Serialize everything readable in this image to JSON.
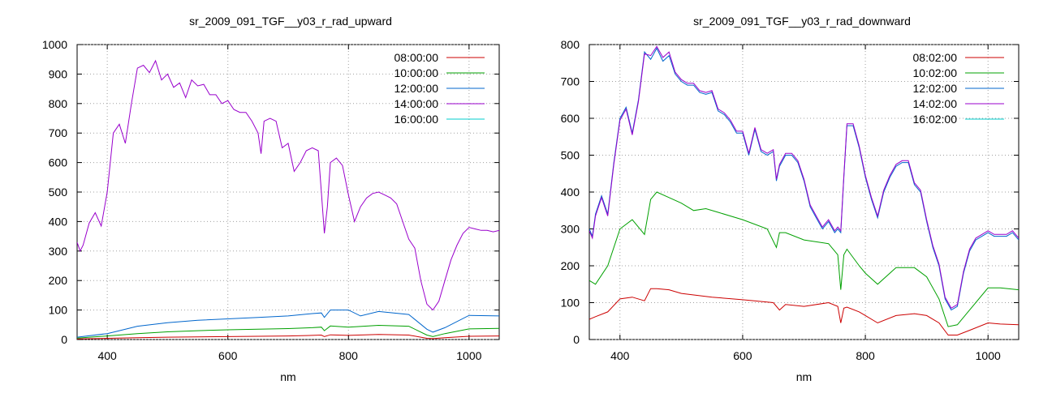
{
  "chart_data": [
    {
      "type": "line",
      "title": "sr_2009_091_TGF__y03_r_rad_upward",
      "xlabel": "nm",
      "ylabel": "",
      "xlim": [
        350,
        1050
      ],
      "ylim": [
        0,
        1000
      ],
      "xticks": [
        400,
        600,
        800,
        1000
      ],
      "yticks": [
        0,
        100,
        200,
        300,
        400,
        500,
        600,
        700,
        800,
        900,
        1000
      ],
      "grid": true,
      "legend_position": "top-right",
      "series": [
        {
          "name": "08:00:00",
          "color": "#cc0000",
          "x": [
            350,
            400,
            450,
            500,
            550,
            600,
            650,
            700,
            740,
            755,
            760,
            770,
            800,
            850,
            900,
            930,
            940,
            960,
            1000,
            1050
          ],
          "y": [
            2,
            4,
            6,
            8,
            9,
            10,
            11,
            12,
            14,
            15,
            10,
            16,
            14,
            17,
            15,
            4,
            3,
            6,
            11,
            12
          ]
        },
        {
          "name": "10:00:00",
          "color": "#00a000",
          "x": [
            350,
            400,
            450,
            500,
            550,
            600,
            650,
            700,
            740,
            755,
            760,
            770,
            800,
            850,
            900,
            930,
            940,
            960,
            1000,
            1050
          ],
          "y": [
            5,
            12,
            20,
            26,
            30,
            33,
            35,
            37,
            40,
            42,
            30,
            46,
            42,
            48,
            45,
            15,
            10,
            20,
            36,
            38
          ]
        },
        {
          "name": "12:00:00",
          "color": "#0066cc",
          "x": [
            350,
            400,
            420,
            450,
            500,
            550,
            600,
            650,
            700,
            740,
            755,
            760,
            770,
            800,
            820,
            850,
            900,
            930,
            940,
            960,
            1000,
            1050
          ],
          "y": [
            8,
            20,
            30,
            45,
            57,
            65,
            70,
            75,
            80,
            88,
            90,
            75,
            100,
            100,
            80,
            95,
            85,
            35,
            25,
            40,
            82,
            80
          ]
        },
        {
          "name": "14:00:00",
          "color": "#9900cc",
          "x": [
            350,
            355,
            360,
            370,
            380,
            390,
            400,
            410,
            420,
            430,
            440,
            450,
            460,
            470,
            480,
            490,
            500,
            510,
            520,
            530,
            540,
            550,
            560,
            570,
            580,
            590,
            600,
            610,
            620,
            630,
            640,
            650,
            655,
            660,
            670,
            680,
            690,
            700,
            710,
            720,
            730,
            740,
            750,
            755,
            760,
            765,
            770,
            780,
            790,
            800,
            810,
            820,
            830,
            840,
            850,
            860,
            870,
            880,
            890,
            900,
            910,
            920,
            930,
            940,
            950,
            960,
            970,
            980,
            990,
            1000,
            1010,
            1020,
            1030,
            1040,
            1050
          ],
          "y": [
            330,
            300,
            320,
            395,
            430,
            385,
            500,
            700,
            730,
            665,
            800,
            920,
            930,
            905,
            945,
            880,
            900,
            855,
            870,
            820,
            880,
            860,
            865,
            830,
            830,
            800,
            810,
            780,
            770,
            770,
            740,
            700,
            630,
            740,
            750,
            740,
            650,
            665,
            570,
            600,
            640,
            650,
            640,
            500,
            360,
            450,
            600,
            615,
            590,
            490,
            400,
            450,
            480,
            495,
            500,
            490,
            480,
            460,
            400,
            340,
            310,
            200,
            120,
            100,
            130,
            200,
            270,
            320,
            360,
            380,
            375,
            370,
            370,
            365,
            370
          ]
        },
        {
          "name": "16:00:00",
          "color": "#00cccc",
          "x": [],
          "y": []
        }
      ]
    },
    {
      "type": "line",
      "title": "sr_2009_091_TGF__y03_r_rad_downward",
      "xlabel": "nm",
      "ylabel": "",
      "xlim": [
        350,
        1050
      ],
      "ylim": [
        0,
        800
      ],
      "xticks": [
        400,
        600,
        800,
        1000
      ],
      "yticks": [
        0,
        100,
        200,
        300,
        400,
        500,
        600,
        700,
        800
      ],
      "grid": true,
      "legend_position": "top-right",
      "series": [
        {
          "name": "08:02:00",
          "color": "#cc0000",
          "x": [
            350,
            360,
            380,
            400,
            420,
            440,
            450,
            460,
            480,
            500,
            550,
            600,
            650,
            660,
            670,
            700,
            740,
            755,
            760,
            765,
            770,
            790,
            800,
            820,
            850,
            880,
            900,
            920,
            935,
            950,
            970,
            1000,
            1020,
            1050
          ],
          "y": [
            55,
            62,
            75,
            110,
            115,
            105,
            138,
            138,
            135,
            125,
            115,
            108,
            100,
            80,
            95,
            90,
            100,
            90,
            45,
            85,
            88,
            75,
            65,
            45,
            65,
            70,
            65,
            45,
            12,
            12,
            25,
            45,
            42,
            40
          ]
        },
        {
          "name": "10:02:00",
          "color": "#00a000",
          "x": [
            350,
            360,
            380,
            400,
            420,
            440,
            450,
            460,
            480,
            500,
            520,
            540,
            560,
            600,
            640,
            655,
            660,
            670,
            700,
            740,
            755,
            760,
            765,
            770,
            790,
            800,
            820,
            850,
            880,
            900,
            920,
            935,
            950,
            970,
            1000,
            1020,
            1050
          ],
          "y": [
            160,
            150,
            200,
            300,
            325,
            285,
            380,
            400,
            385,
            370,
            350,
            355,
            345,
            325,
            300,
            250,
            290,
            290,
            270,
            260,
            230,
            135,
            230,
            245,
            200,
            180,
            150,
            195,
            195,
            170,
            110,
            35,
            40,
            80,
            140,
            140,
            135
          ]
        },
        {
          "name": "12:02:00",
          "color": "#0066cc",
          "x": [
            350,
            355,
            360,
            370,
            380,
            390,
            400,
            410,
            420,
            430,
            440,
            450,
            460,
            470,
            480,
            490,
            500,
            510,
            520,
            530,
            540,
            550,
            560,
            570,
            580,
            590,
            600,
            610,
            620,
            630,
            640,
            650,
            655,
            660,
            670,
            680,
            690,
            700,
            710,
            720,
            730,
            740,
            750,
            755,
            760,
            765,
            770,
            780,
            790,
            800,
            810,
            820,
            830,
            840,
            850,
            860,
            870,
            880,
            890,
            900,
            910,
            920,
            930,
            940,
            950,
            960,
            970,
            980,
            990,
            1000,
            1010,
            1020,
            1030,
            1040,
            1050
          ],
          "y": [
            300,
            280,
            340,
            390,
            340,
            480,
            600,
            630,
            560,
            650,
            780,
            760,
            790,
            755,
            770,
            720,
            700,
            690,
            690,
            670,
            665,
            670,
            620,
            610,
            590,
            560,
            560,
            500,
            570,
            510,
            500,
            510,
            430,
            470,
            500,
            500,
            480,
            430,
            360,
            330,
            300,
            320,
            290,
            300,
            290,
            440,
            580,
            580,
            520,
            440,
            380,
            330,
            400,
            440,
            470,
            480,
            480,
            420,
            400,
            320,
            250,
            200,
            110,
            80,
            90,
            180,
            240,
            270,
            280,
            290,
            280,
            280,
            280,
            290,
            270
          ]
        },
        {
          "name": "14:02:00",
          "color": "#9900cc",
          "x": [
            350,
            355,
            360,
            370,
            380,
            390,
            400,
            410,
            420,
            430,
            440,
            450,
            460,
            470,
            480,
            490,
            500,
            510,
            520,
            530,
            540,
            550,
            560,
            570,
            580,
            590,
            600,
            610,
            620,
            630,
            640,
            650,
            655,
            660,
            670,
            680,
            690,
            700,
            710,
            720,
            730,
            740,
            750,
            755,
            760,
            765,
            770,
            780,
            790,
            800,
            810,
            820,
            830,
            840,
            850,
            860,
            870,
            880,
            890,
            900,
            910,
            920,
            930,
            940,
            950,
            960,
            970,
            980,
            990,
            1000,
            1010,
            1020,
            1030,
            1040,
            1050
          ],
          "y": [
            295,
            275,
            335,
            385,
            335,
            475,
            595,
            625,
            555,
            645,
            775,
            770,
            795,
            765,
            780,
            725,
            705,
            695,
            695,
            675,
            670,
            675,
            625,
            615,
            595,
            565,
            565,
            505,
            575,
            515,
            505,
            515,
            435,
            475,
            505,
            505,
            485,
            435,
            365,
            335,
            305,
            325,
            295,
            305,
            295,
            445,
            585,
            585,
            525,
            445,
            385,
            335,
            405,
            445,
            475,
            485,
            485,
            425,
            405,
            325,
            255,
            205,
            115,
            85,
            95,
            185,
            245,
            275,
            285,
            295,
            285,
            285,
            285,
            295,
            275
          ]
        },
        {
          "name": "16:02:00",
          "color": "#00cccc",
          "x": [],
          "y": []
        }
      ]
    }
  ]
}
